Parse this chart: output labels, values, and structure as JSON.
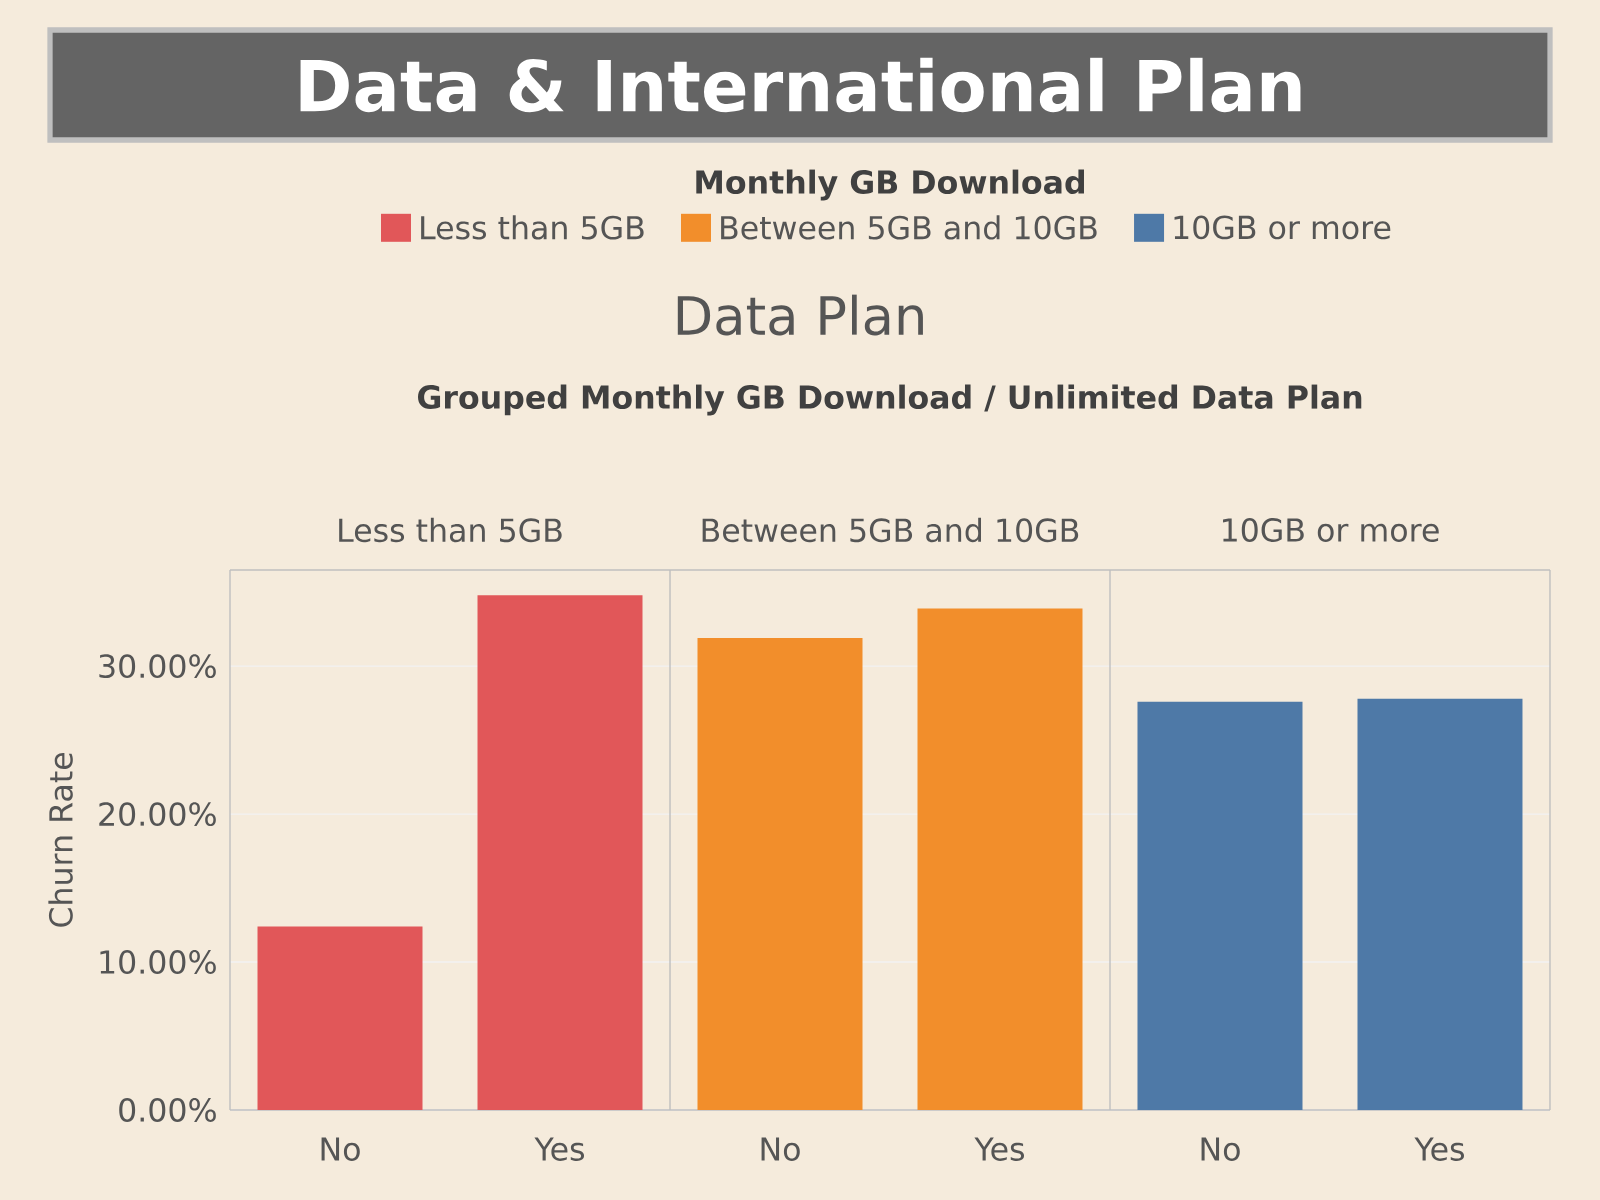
{
  "chart_data": {
    "type": "bar",
    "title": "Data & International Plan",
    "subtitle": "Data Plan",
    "annotations": [
      "Grouped Monthly GB Download / Unlimited Data Plan"
    ],
    "ylabel": "Churn Rate",
    "legend_title": "Monthly GB Download",
    "categories": [
      "No",
      "Yes",
      "No",
      "Yes",
      "No",
      "Yes"
    ],
    "series": [
      {
        "name": "Less than 5GB",
        "color": "#e15759",
        "values": [
          12.4,
          34.8,
          null,
          null,
          null,
          null
        ]
      },
      {
        "name": "Between 5GB and 10GB",
        "color": "#f28e2b",
        "values": [
          null,
          null,
          31.9,
          33.9,
          null,
          null
        ]
      },
      {
        "name": "10GB or more",
        "color": "#4e79a7",
        "values": [
          null,
          null,
          null,
          null,
          27.6,
          27.8
        ]
      }
    ],
    "ylim": [
      0,
      36.5
    ],
    "yticks": [
      {
        "value": 0,
        "label": "0.00%"
      },
      {
        "value": 10,
        "label": "10.00%"
      },
      {
        "value": 20,
        "label": "20.00%"
      },
      {
        "value": 30,
        "label": "30.00%"
      }
    ],
    "grid": "y",
    "legend": "top"
  }
}
